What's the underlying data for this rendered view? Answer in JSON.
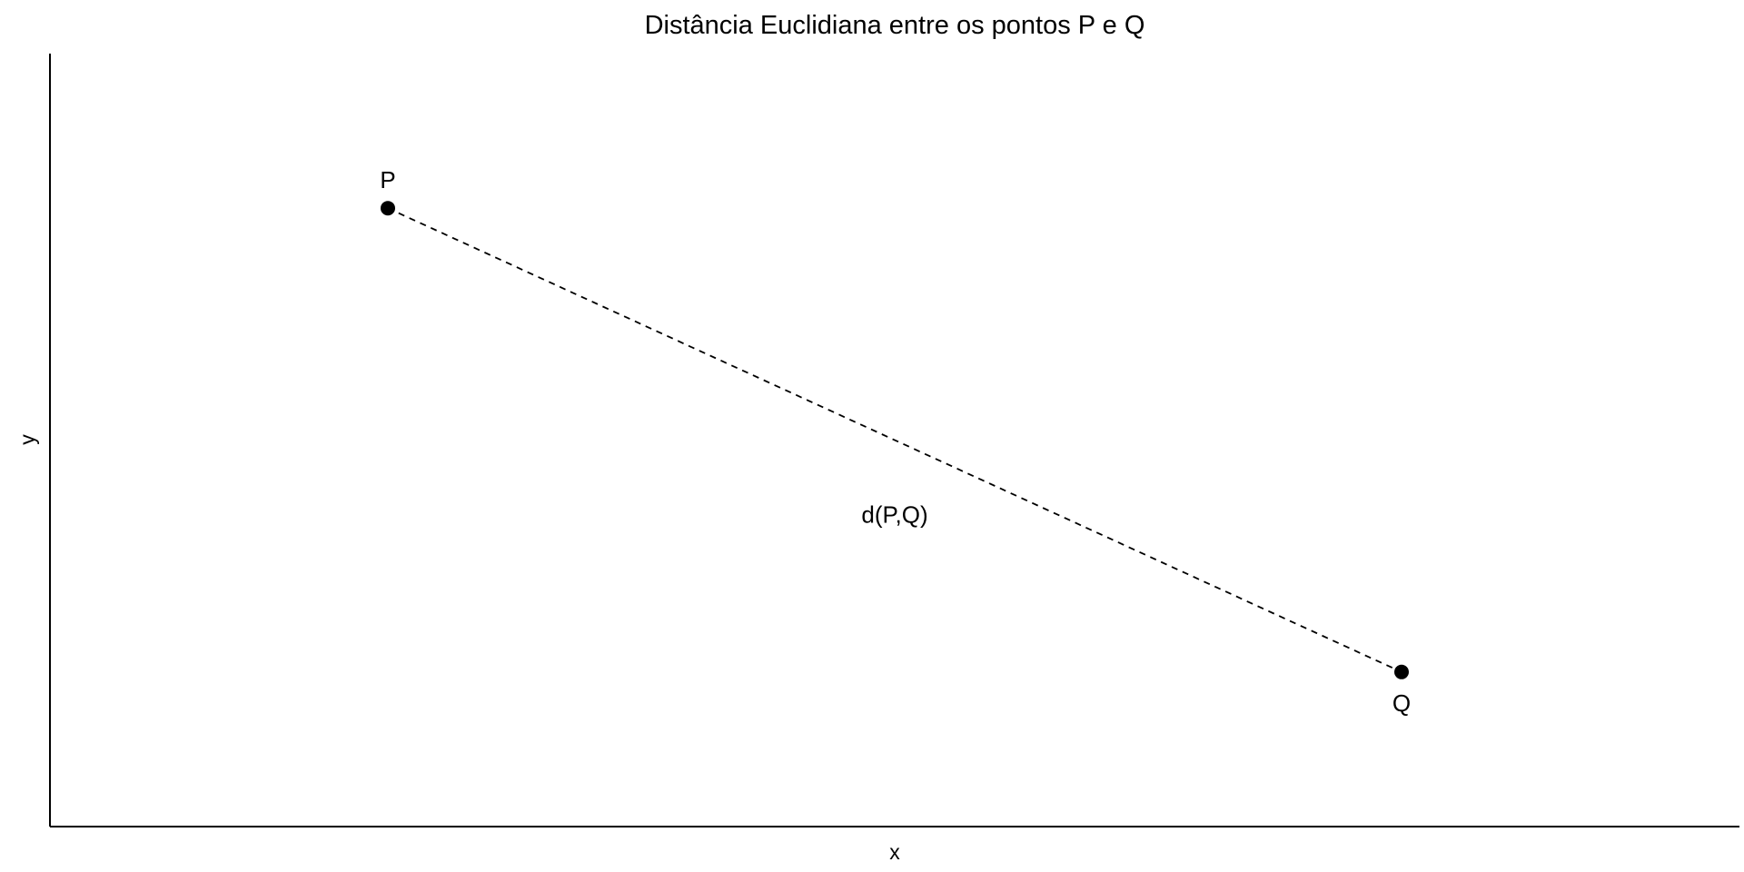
{
  "chart_data": {
    "type": "scatter",
    "title": "Distância Euclidiana entre os pontos P e Q",
    "xlabel": "x",
    "ylabel": "y",
    "xlim": [
      0,
      10
    ],
    "ylim": [
      0,
      10
    ],
    "grid": false,
    "points": [
      {
        "label": "P",
        "x": 2,
        "y": 8
      },
      {
        "label": "Q",
        "x": 8,
        "y": 2
      }
    ],
    "segment": {
      "from": "P",
      "to": "Q",
      "style": "dashed"
    },
    "annotation": {
      "text": "d(P,Q)",
      "x": 5,
      "y": 4
    },
    "colors": {
      "points": "#000000",
      "line": "#000000",
      "axes": "#000000"
    }
  }
}
